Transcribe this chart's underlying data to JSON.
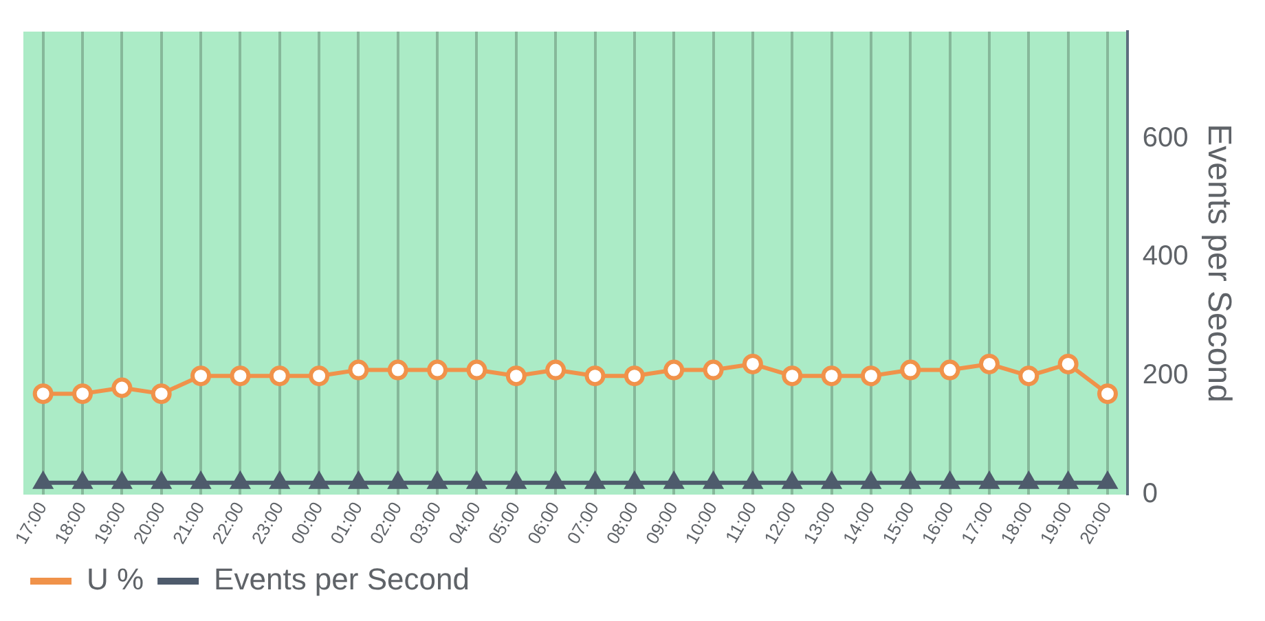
{
  "chart_data": {
    "type": "line",
    "ylabel": "Events per Second",
    "categories": [
      "17:00",
      "18:00",
      "19:00",
      "20:00",
      "21:00",
      "22:00",
      "23:00",
      "00:00",
      "01:00",
      "02:00",
      "03:00",
      "04:00",
      "05:00",
      "06:00",
      "07:00",
      "08:00",
      "09:00",
      "10:00",
      "11:00",
      "12:00",
      "13:00",
      "14:00",
      "15:00",
      "16:00",
      "17:00",
      "18:00",
      "19:00",
      "20:00"
    ],
    "series": [
      {
        "name": "U %",
        "color": "#f0924a",
        "marker": "circle",
        "values": [
          170,
          170,
          180,
          170,
          200,
          200,
          200,
          200,
          210,
          210,
          210,
          210,
          200,
          210,
          200,
          200,
          210,
          210,
          220,
          200,
          200,
          200,
          210,
          210,
          220,
          200,
          220,
          170
        ]
      },
      {
        "name": "Events per Second",
        "color": "#4e5b6c",
        "marker": "triangle",
        "values": [
          20,
          20,
          20,
          20,
          20,
          20,
          20,
          20,
          20,
          20,
          20,
          20,
          20,
          20,
          20,
          20,
          20,
          20,
          20,
          20,
          20,
          20,
          20,
          20,
          20,
          20,
          20,
          20
        ]
      }
    ],
    "ylim": [
      0,
      780
    ],
    "yticks": [
      0,
      200,
      400,
      600
    ],
    "grid": "x",
    "legend": "bottom"
  }
}
